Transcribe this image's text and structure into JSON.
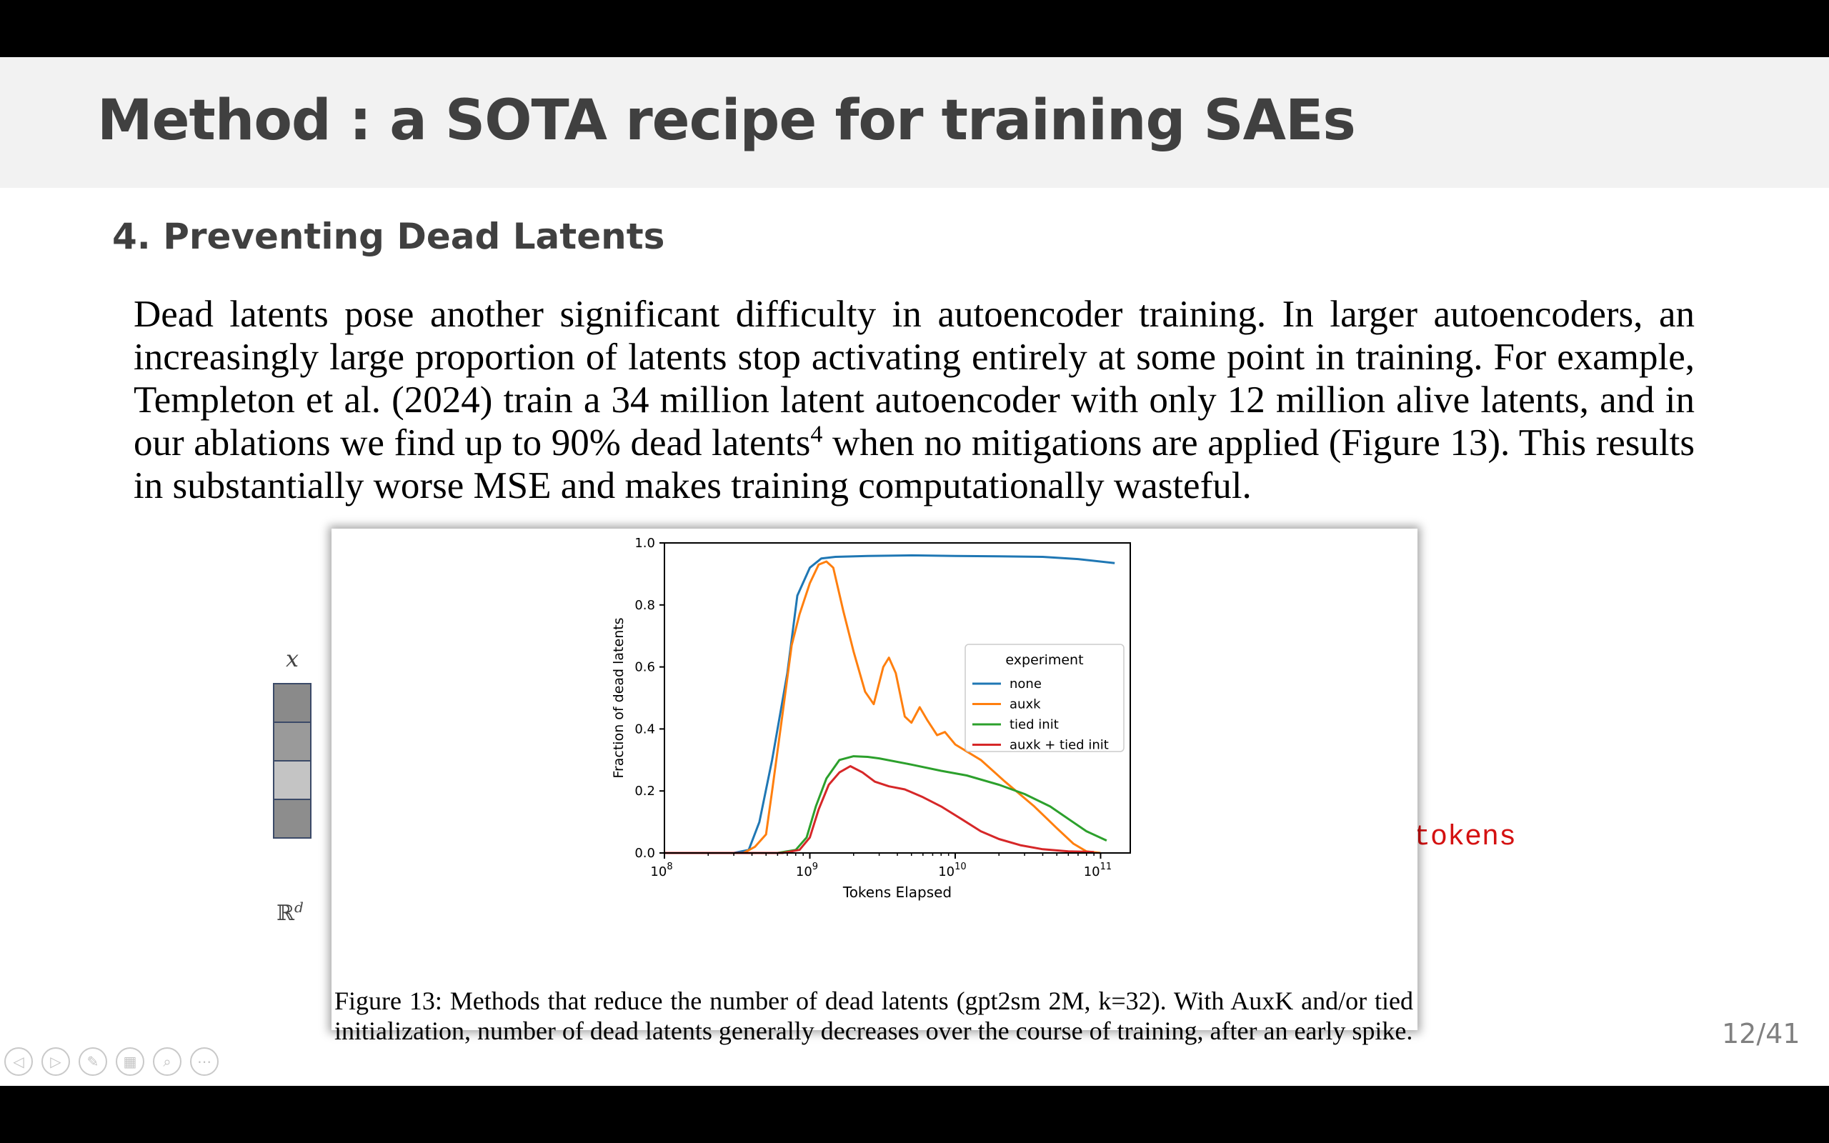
{
  "slide": {
    "title": "Method : a SOTA recipe for training SAEs",
    "heading": "4. Preventing Dead Latents",
    "body_before_sup": "Dead latents pose another significant difficulty in autoencoder training. In larger autoencoders, an increasingly large proportion of latents stop activating entirely at some point in training. For example, Templeton et al. (2024) train a 34 million latent autoencoder with only 12 million alive latents, and in our ablations we find up to 90% dead latents",
    "footnote_mark": "4",
    "body_after_sup": " when no mitigations are applied (Figure 13). This results in substantially worse MSE and makes training computationally wasteful.",
    "page_number": "12/41"
  },
  "background_diagram": {
    "vector_label": "x",
    "dim_base": "ℝ",
    "dim_sup": "d",
    "cell_colors": [
      "#8a8a8a",
      "#9a9a9a",
      "#c4c4c4",
      "#8d8d8d"
    ],
    "red_text": "g tokens",
    "red_color": "#d41111"
  },
  "figure": {
    "caption": "Figure 13: Methods that reduce the number of dead latents (gpt2sm 2M, k=32). With AuxK and/or tied initialization, number of dead latents generally decreases over the course of training, after an early spike."
  },
  "chart_data": {
    "type": "line",
    "xlabel": "Tokens Elapsed",
    "ylabel": "Fraction of dead latents",
    "xscale": "log",
    "xlim": [
      100000000.0,
      160000000000.0
    ],
    "ylim": [
      0,
      1.0
    ],
    "x_ticks": [
      {
        "value": 100000000.0,
        "base": "10",
        "exp": "8"
      },
      {
        "value": 1000000000.0,
        "base": "10",
        "exp": "9"
      },
      {
        "value": 10000000000.0,
        "base": "10",
        "exp": "10"
      },
      {
        "value": 100000000000.0,
        "base": "10",
        "exp": "11"
      }
    ],
    "y_ticks": [
      "0.0",
      "0.2",
      "0.4",
      "0.6",
      "0.8",
      "1.0"
    ],
    "legend_title": "experiment",
    "legend_position": "center-right",
    "grid": false,
    "series": [
      {
        "name": "none",
        "color": "#1f77b4",
        "points": [
          [
            100000000.0,
            0
          ],
          [
            300000000.0,
            0
          ],
          [
            380000000.0,
            0.01
          ],
          [
            450000000.0,
            0.1
          ],
          [
            550000000.0,
            0.3
          ],
          [
            700000000.0,
            0.58
          ],
          [
            820000000.0,
            0.83
          ],
          [
            1000000000.0,
            0.92
          ],
          [
            1200000000.0,
            0.95
          ],
          [
            1500000000.0,
            0.955
          ],
          [
            2500000000.0,
            0.958
          ],
          [
            5000000000.0,
            0.96
          ],
          [
            10000000000.0,
            0.958
          ],
          [
            20000000000.0,
            0.957
          ],
          [
            40000000000.0,
            0.955
          ],
          [
            70000000000.0,
            0.948
          ],
          [
            125000000000.0,
            0.935
          ]
        ]
      },
      {
        "name": "auxk",
        "color": "#ff7f0e",
        "points": [
          [
            100000000.0,
            0
          ],
          [
            350000000.0,
            0
          ],
          [
            420000000.0,
            0.02
          ],
          [
            500000000.0,
            0.06
          ],
          [
            550000000.0,
            0.2
          ],
          [
            650000000.0,
            0.45
          ],
          [
            750000000.0,
            0.67
          ],
          [
            850000000.0,
            0.77
          ],
          [
            1000000000.0,
            0.87
          ],
          [
            1150000000.0,
            0.93
          ],
          [
            1300000000.0,
            0.94
          ],
          [
            1450000000.0,
            0.92
          ],
          [
            1700000000.0,
            0.78
          ],
          [
            2000000000.0,
            0.65
          ],
          [
            2400000000.0,
            0.52
          ],
          [
            2750000000.0,
            0.48
          ],
          [
            3200000000.0,
            0.6
          ],
          [
            3500000000.0,
            0.63
          ],
          [
            3900000000.0,
            0.58
          ],
          [
            4500000000.0,
            0.44
          ],
          [
            5000000000.0,
            0.42
          ],
          [
            5700000000.0,
            0.47
          ],
          [
            6400000000.0,
            0.43
          ],
          [
            7500000000.0,
            0.38
          ],
          [
            8500000000.0,
            0.39
          ],
          [
            10000000000.0,
            0.35
          ],
          [
            15000000000.0,
            0.3
          ],
          [
            22000000000.0,
            0.23
          ],
          [
            35000000000.0,
            0.15
          ],
          [
            50000000000.0,
            0.08
          ],
          [
            65000000000.0,
            0.03
          ],
          [
            80000000000.0,
            0.005
          ],
          [
            100000000000.0,
            0.0
          ]
        ]
      },
      {
        "name": "tied init",
        "color": "#2ca02c",
        "points": [
          [
            100000000.0,
            0
          ],
          [
            600000000.0,
            0
          ],
          [
            800000000.0,
            0.01
          ],
          [
            950000000.0,
            0.05
          ],
          [
            1100000000.0,
            0.15
          ],
          [
            1300000000.0,
            0.24
          ],
          [
            1600000000.0,
            0.3
          ],
          [
            2000000000.0,
            0.312
          ],
          [
            2500000000.0,
            0.31
          ],
          [
            3000000000.0,
            0.305
          ],
          [
            5000000000.0,
            0.285
          ],
          [
            8000000000.0,
            0.265
          ],
          [
            12000000000.0,
            0.25
          ],
          [
            20000000000.0,
            0.22
          ],
          [
            30000000000.0,
            0.19
          ],
          [
            45000000000.0,
            0.15
          ],
          [
            60000000000.0,
            0.11
          ],
          [
            80000000000.0,
            0.07
          ],
          [
            110000000000.0,
            0.04
          ]
        ]
      },
      {
        "name": "auxk + tied init",
        "color": "#d62728",
        "points": [
          [
            100000000.0,
            0
          ],
          [
            650000000.0,
            0
          ],
          [
            850000000.0,
            0.01
          ],
          [
            1000000000.0,
            0.05
          ],
          [
            1150000000.0,
            0.14
          ],
          [
            1350000000.0,
            0.22
          ],
          [
            1600000000.0,
            0.26
          ],
          [
            1900000000.0,
            0.28
          ],
          [
            2300000000.0,
            0.26
          ],
          [
            2800000000.0,
            0.23
          ],
          [
            3500000000.0,
            0.215
          ],
          [
            4500000000.0,
            0.205
          ],
          [
            6000000000.0,
            0.18
          ],
          [
            8000000000.0,
            0.15
          ],
          [
            11000000000.0,
            0.11
          ],
          [
            15000000000.0,
            0.07
          ],
          [
            20000000000.0,
            0.045
          ],
          [
            28000000000.0,
            0.025
          ],
          [
            40000000000.0,
            0.012
          ],
          [
            60000000000.0,
            0.005
          ],
          [
            90000000000.0,
            0.003
          ]
        ]
      }
    ]
  }
}
